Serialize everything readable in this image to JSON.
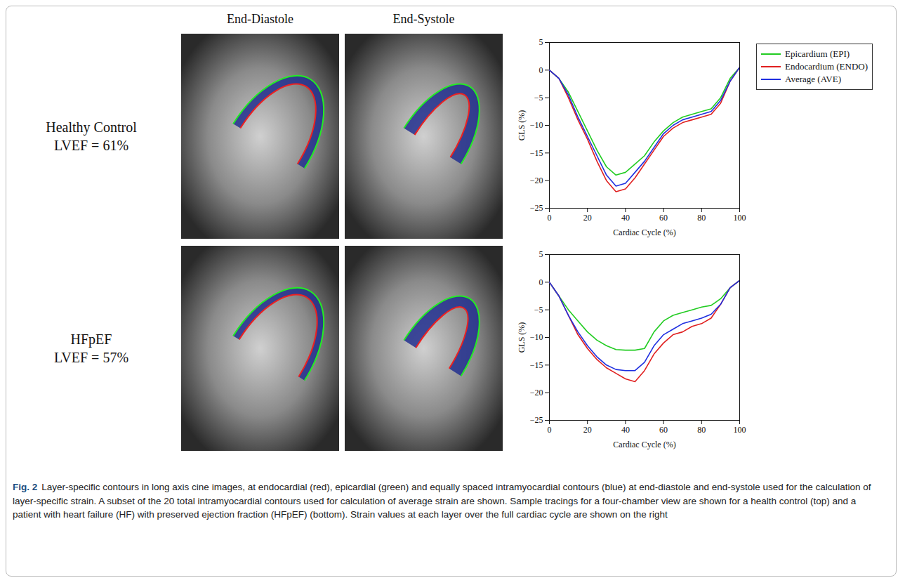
{
  "column_heads": [
    "End-Diastole",
    "End-Systole"
  ],
  "rows": [
    {
      "label": "Healthy Control",
      "lvef": "LVEF = 61%"
    },
    {
      "label": "HFpEF",
      "lvef": "LVEF = 57%"
    }
  ],
  "chart_data": [
    {
      "type": "line",
      "xlabel": "Cardiac Cycle (%)",
      "ylabel": "GLS (%)",
      "x": [
        0,
        5,
        10,
        15,
        20,
        25,
        30,
        35,
        40,
        45,
        50,
        55,
        60,
        65,
        70,
        75,
        80,
        85,
        90,
        95,
        100
      ],
      "xlim": [
        0,
        100
      ],
      "xticks": [
        0,
        20,
        40,
        60,
        80,
        100
      ],
      "ylim": [
        -25,
        5
      ],
      "yticks": [
        -25,
        -20,
        -15,
        -10,
        -5,
        0,
        5
      ],
      "legend": "right",
      "series": [
        {
          "name": "Epicardium (EPI)",
          "color": "#22cc22",
          "values": [
            0,
            -1.5,
            -4,
            -7.5,
            -11,
            -14.5,
            -17.5,
            -19,
            -18.5,
            -17,
            -15.5,
            -13,
            -11,
            -9.5,
            -8.5,
            -8,
            -7.5,
            -7,
            -5,
            -1.5,
            0.5
          ]
        },
        {
          "name": "Endocardium (ENDO)",
          "color": "#e02020",
          "values": [
            0,
            -1.5,
            -5,
            -9,
            -12.5,
            -16.5,
            -20,
            -22,
            -21.5,
            -19.5,
            -17,
            -14.5,
            -12,
            -10.5,
            -9.5,
            -9,
            -8.5,
            -8,
            -6,
            -2,
            0.5
          ]
        },
        {
          "name": "Average (AVE)",
          "color": "#1f2fe0",
          "values": [
            0,
            -1.5,
            -4.5,
            -8.5,
            -12,
            -15.5,
            -19,
            -21,
            -20.5,
            -18.5,
            -16.5,
            -14,
            -11.5,
            -10,
            -9,
            -8.5,
            -8,
            -7.5,
            -5.5,
            -2,
            0.5
          ]
        }
      ]
    },
    {
      "type": "line",
      "xlabel": "Cardiac Cycle (%)",
      "ylabel": "GLS (%)",
      "x": [
        0,
        5,
        10,
        15,
        20,
        25,
        30,
        35,
        40,
        45,
        50,
        55,
        60,
        65,
        70,
        75,
        80,
        85,
        90,
        95,
        100
      ],
      "xlim": [
        0,
        100
      ],
      "xticks": [
        0,
        20,
        40,
        60,
        80,
        100
      ],
      "ylim": [
        -25,
        5
      ],
      "yticks": [
        -25,
        -20,
        -15,
        -10,
        -5,
        0,
        5
      ],
      "series": [
        {
          "name": "Epicardium (EPI)",
          "color": "#22cc22",
          "values": [
            0,
            -2.5,
            -5,
            -7,
            -9,
            -10.5,
            -11.5,
            -12.2,
            -12.3,
            -12.3,
            -12,
            -9,
            -7,
            -6,
            -5.5,
            -5,
            -4.5,
            -4.2,
            -3,
            -1,
            0.3
          ]
        },
        {
          "name": "Endocardium (ENDO)",
          "color": "#e02020",
          "values": [
            0,
            -2.5,
            -6,
            -9.5,
            -12,
            -14,
            -15.5,
            -16.5,
            -17.5,
            -18,
            -16,
            -13,
            -11,
            -9.5,
            -9,
            -8,
            -7.5,
            -6.5,
            -4,
            -1,
            0.3
          ]
        },
        {
          "name": "Average (AVE)",
          "color": "#1f2fe0",
          "values": [
            0,
            -2.5,
            -6,
            -9,
            -11.5,
            -13.5,
            -15,
            -15.8,
            -16,
            -16,
            -14.5,
            -11.5,
            -9.5,
            -8.5,
            -7.5,
            -7,
            -6.5,
            -5.8,
            -4,
            -1,
            0.3
          ]
        }
      ]
    }
  ],
  "caption": {
    "label": "Fig. 2",
    "text": "Layer-specific contours in long axis cine images, at endocardial (red), epicardial (green) and equally spaced intramyocardial contours (blue) at end-diastole and end-systole used for the calculation of layer-specific strain. A subset of the 20 total intramyocardial contours used for calculation of average strain are shown. Sample tracings for a four-chamber view are shown for a health control (top) and a patient with heart failure (HF) with preserved ejection fraction (HFpEF) (bottom). Strain values at each layer over the full cardiac cycle are shown on the right"
  }
}
